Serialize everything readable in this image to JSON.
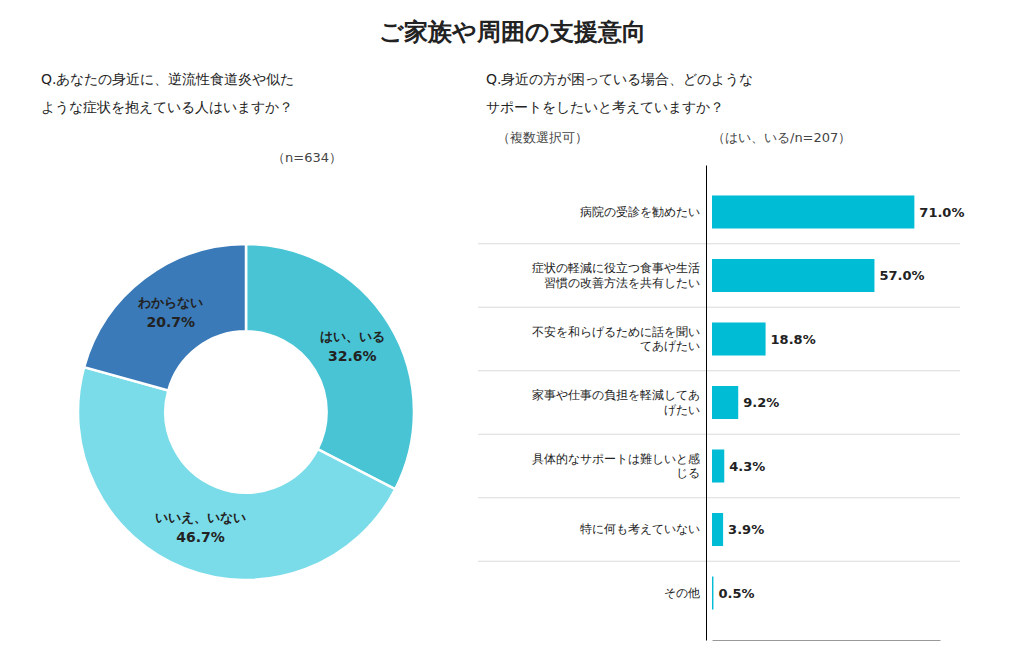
{
  "chart_data": [
    {
      "type": "donut",
      "title": "ご家族や周囲の支援意向",
      "subtitle": [
        "Q.あなたの身近に、逆流性食道炎や似た",
        "ような症状を抱えている人はいますか？"
      ],
      "annotations": [
        "（n=634）"
      ],
      "categories": [
        "はい、いる",
        "いいえ、いない",
        "わからない"
      ],
      "values": [
        32.6,
        46.7,
        20.7
      ],
      "value_labels": [
        "32.6%",
        "46.7%",
        "20.7%"
      ],
      "colors": [
        "#48c4d4",
        "#7adce8",
        "#3a7ab8"
      ],
      "data_labels": true
    },
    {
      "type": "bar",
      "orientation": "horizontal",
      "subtitle": [
        "Q.身近の方が困っている場合、どのような",
        "サポートをしたいと考えていますか？"
      ],
      "annotations": [
        "（複数選択可）",
        "（はい、いる/n=207）"
      ],
      "categories": [
        "病院の受診を勧めたい",
        "症状の軽減に役立つ食事や生活\n習慣の改善方法を共有したい",
        "不安を和らげるために話を聞い\nてあげたい",
        "家事や仕事の負担を軽減してあ\nげたい",
        "具体的なサポートは難しいと感\nじる",
        "特に何も考えていない",
        "その他"
      ],
      "values": [
        71.0,
        57.0,
        18.8,
        9.2,
        4.3,
        3.9,
        0.5
      ],
      "value_labels": [
        "71.0%",
        "57.0%",
        "18.8%",
        "9.2%",
        "4.3%",
        "3.9%",
        "0.5%"
      ],
      "color": "#00bcd4",
      "xlim": [
        0,
        80
      ],
      "xticks": [],
      "tick_labels": "y",
      "data_labels": true
    }
  ]
}
